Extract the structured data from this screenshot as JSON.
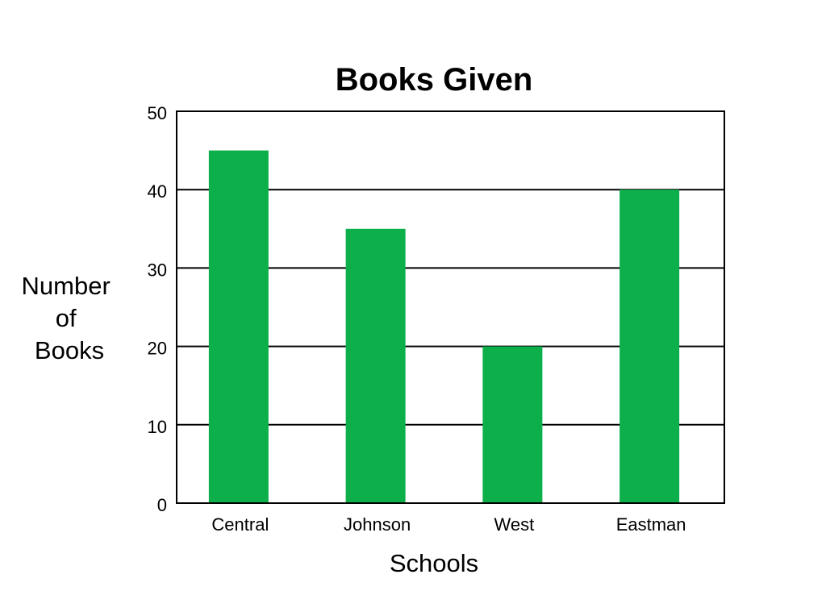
{
  "chart_data": {
    "type": "bar",
    "title": "Books Given",
    "xlabel": "Schools",
    "ylabel": [
      "Number",
      "of",
      "Books"
    ],
    "categories": [
      "Central",
      "Johnson",
      "West",
      "Eastman"
    ],
    "values": [
      45,
      35,
      20,
      40
    ],
    "ylim": [
      0,
      50
    ],
    "yticks": [
      "0",
      "10",
      "20",
      "30",
      "40",
      "50"
    ],
    "grid": true,
    "legend": "none",
    "colors": {
      "bar": "#0daf4b",
      "axis": "#000000",
      "background": "#ffffff"
    }
  }
}
